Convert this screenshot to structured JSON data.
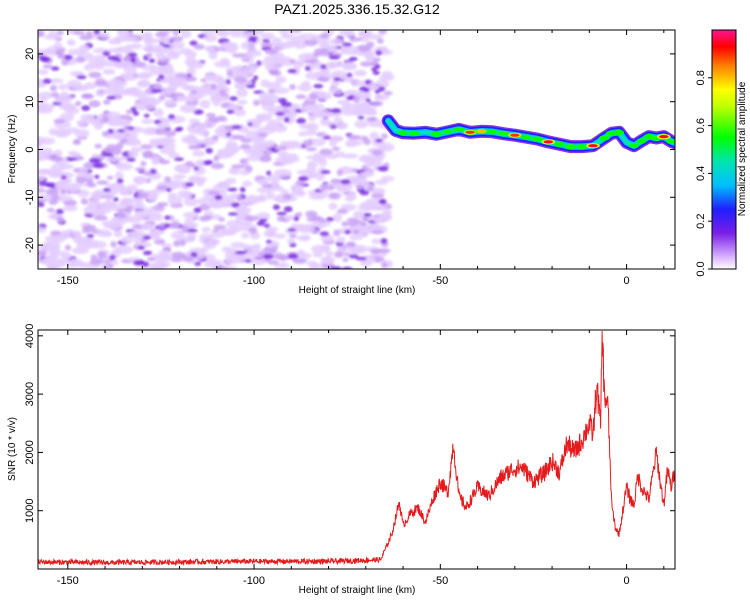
{
  "chart_data": [
    {
      "type": "heatmap",
      "title": "PAZ1.2025.336.15.32.G12",
      "xlabel": "Height of straight line (km)",
      "ylabel": "Frequency (Hz)",
      "xlim": [
        -158,
        13
      ],
      "ylim": [
        -25,
        25
      ],
      "xticks": [
        -150,
        -100,
        -50,
        0
      ],
      "yticks": [
        -20,
        -10,
        0,
        10,
        20
      ],
      "noise_region_x": [
        -158,
        -64
      ],
      "signal_trace": {
        "x": [
          -64,
          -62,
          -60,
          -57,
          -54,
          -51,
          -48,
          -45,
          -42,
          -39,
          -36,
          -33,
          -30,
          -27,
          -24,
          -21,
          -18,
          -15,
          -12,
          -9,
          -6,
          -4,
          -2,
          0,
          2,
          4,
          6,
          8,
          10,
          12,
          13
        ],
        "frequency": [
          6,
          4,
          3.5,
          3.4,
          3.6,
          3.2,
          3.7,
          4.2,
          3.6,
          3.8,
          3.7,
          3.3,
          3.0,
          2.6,
          2.2,
          1.6,
          1.1,
          0.6,
          0.6,
          0.8,
          2.4,
          3.4,
          3.6,
          1.5,
          0.8,
          1.8,
          2.7,
          2.4,
          2.7,
          1.7,
          1.4
        ],
        "amplitude": [
          0.25,
          0.45,
          0.5,
          0.55,
          0.45,
          0.6,
          0.5,
          0.6,
          0.9,
          0.8,
          0.55,
          0.75,
          0.9,
          0.55,
          0.7,
          0.95,
          0.55,
          0.75,
          0.6,
          0.95,
          0.6,
          0.7,
          0.5,
          0.3,
          0.55,
          0.5,
          0.6,
          0.75,
          0.95,
          0.55,
          0.45
        ]
      }
    },
    {
      "type": "colorbar",
      "label": "Normalized spectral amplitude",
      "range": [
        0,
        1
      ],
      "ticks": [
        "0.0",
        "0.2",
        "0.4",
        "0.6",
        "0.8"
      ]
    },
    {
      "type": "line",
      "xlabel": "Height of straight line (km)",
      "ylabel": "SNR (10 * v/v)",
      "xlim": [
        -158,
        13
      ],
      "ylim": [
        0,
        4100
      ],
      "xticks": [
        -150,
        -100,
        -50,
        0
      ],
      "yticks": [
        1000,
        2000,
        3000,
        4000
      ],
      "color": "#e41a1c",
      "series": [
        {
          "name": "SNR",
          "x": [
            -158,
            -140,
            -120,
            -100,
            -80,
            -66,
            -63,
            -61,
            -60,
            -58,
            -56,
            -54,
            -52,
            -50,
            -48,
            -46.5,
            -45,
            -43,
            -40,
            -37,
            -34,
            -31,
            -28,
            -25,
            -22,
            -20,
            -18,
            -16,
            -14,
            -12,
            -10,
            -9,
            -8,
            -7,
            -6.5,
            -6,
            -5,
            -4,
            -3,
            -2,
            -1,
            0,
            1,
            2,
            3,
            4,
            6,
            8,
            9,
            10,
            11,
            12,
            13
          ],
          "y": [
            120,
            110,
            120,
            130,
            130,
            160,
            600,
            1150,
            750,
            950,
            1050,
            800,
            1200,
            1500,
            1300,
            2150,
            1250,
            1050,
            1400,
            1250,
            1550,
            1700,
            1750,
            1500,
            1650,
            1850,
            1650,
            2150,
            2000,
            2200,
            2500,
            2300,
            3150,
            2450,
            4100,
            3000,
            2800,
            1100,
            700,
            600,
            1000,
            1400,
            1200,
            1100,
            1600,
            1400,
            1200,
            2000,
            1500,
            1100,
            1700,
            1400,
            1700
          ]
        }
      ]
    }
  ]
}
